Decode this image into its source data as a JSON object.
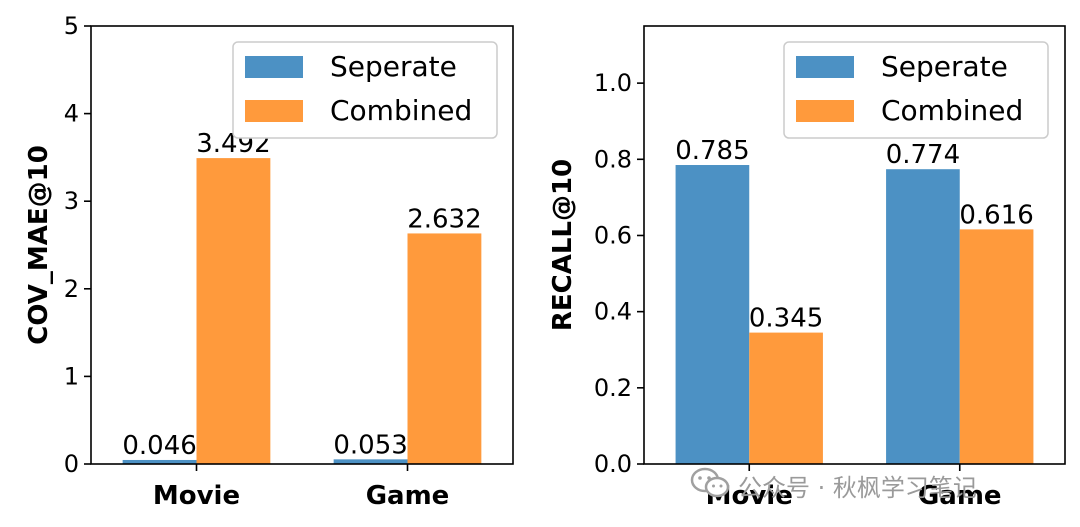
{
  "colors": {
    "series_0": "#4c91c4",
    "series_1": "#ff9a3c",
    "axis": "#000000",
    "watermark": "#9a9a9a"
  },
  "watermark": "公众号 · 秋枫学习笔记",
  "chart_data": [
    {
      "type": "bar",
      "title": "",
      "xlabel": "",
      "ylabel": "COV_MAE@10",
      "categories": [
        "Movie",
        "Game"
      ],
      "ylim": [
        0,
        5
      ],
      "yticks": [
        0,
        1,
        2,
        3,
        4,
        5
      ],
      "ytick_labels": [
        "0",
        "1",
        "2",
        "3",
        "4",
        "5"
      ],
      "legend_position": "top-right",
      "grid": false,
      "series": [
        {
          "name": "Seperate",
          "values": [
            0.046,
            0.053
          ],
          "labels": [
            "0.046",
            "0.053"
          ]
        },
        {
          "name": "Combined",
          "values": [
            3.492,
            2.632
          ],
          "labels": [
            "3.492",
            "2.632"
          ]
        }
      ]
    },
    {
      "type": "bar",
      "title": "",
      "xlabel": "",
      "ylabel": "RECALL@10",
      "categories": [
        "Movie",
        "Game"
      ],
      "ylim": [
        0,
        1.15
      ],
      "yticks": [
        0,
        0.2,
        0.4,
        0.6,
        0.8,
        1.0
      ],
      "ytick_labels": [
        "0.0",
        "0.2",
        "0.4",
        "0.6",
        "0.8",
        "1.0"
      ],
      "legend_position": "top-right",
      "grid": false,
      "series": [
        {
          "name": "Seperate",
          "values": [
            0.785,
            0.774
          ],
          "labels": [
            "0.785",
            "0.774"
          ]
        },
        {
          "name": "Combined",
          "values": [
            0.345,
            0.616
          ],
          "labels": [
            "0.345",
            "0.616"
          ]
        }
      ]
    }
  ]
}
